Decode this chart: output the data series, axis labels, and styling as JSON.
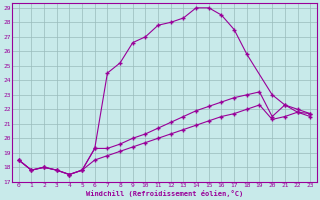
{
  "xlabel": "Windchill (Refroidissement éolien,°C)",
  "bg_color": "#c8eaea",
  "line_color": "#990099",
  "grid_color": "#99bbbb",
  "xlim": [
    -0.5,
    23.5
  ],
  "ylim": [
    17,
    29.3
  ],
  "xticks": [
    0,
    1,
    2,
    3,
    4,
    5,
    6,
    7,
    8,
    9,
    10,
    11,
    12,
    13,
    14,
    15,
    16,
    17,
    18,
    19,
    20,
    21,
    22,
    23
  ],
  "yticks": [
    17,
    18,
    19,
    20,
    21,
    22,
    23,
    24,
    25,
    26,
    27,
    28,
    29
  ],
  "line1_x": [
    0,
    1,
    2,
    3,
    4,
    5,
    6,
    7,
    8,
    9,
    10,
    11,
    12,
    13,
    14,
    15,
    16,
    17,
    18,
    20,
    21,
    22,
    23
  ],
  "line1_y": [
    18.5,
    17.8,
    18.0,
    17.8,
    17.5,
    17.8,
    19.3,
    24.5,
    25.2,
    26.6,
    27.0,
    27.8,
    28.0,
    28.3,
    29.0,
    29.0,
    28.5,
    27.5,
    25.8,
    23.0,
    22.3,
    21.8,
    21.7
  ],
  "line2_x": [
    0,
    1,
    2,
    3,
    4,
    5,
    6,
    7,
    8,
    9,
    10,
    11,
    12,
    13,
    14,
    15,
    16,
    17,
    18,
    19,
    20,
    21,
    22,
    23
  ],
  "line2_y": [
    18.5,
    17.8,
    18.0,
    17.8,
    17.5,
    17.8,
    19.3,
    19.3,
    19.6,
    20.0,
    20.3,
    20.7,
    21.1,
    21.5,
    21.9,
    22.2,
    22.5,
    22.8,
    23.0,
    23.2,
    21.5,
    22.3,
    22.0,
    21.7
  ],
  "line3_x": [
    0,
    1,
    2,
    3,
    4,
    5,
    6,
    7,
    8,
    9,
    10,
    11,
    12,
    13,
    14,
    15,
    16,
    17,
    18,
    19,
    20,
    21,
    22,
    23
  ],
  "line3_y": [
    18.5,
    17.8,
    18.0,
    17.8,
    17.5,
    17.8,
    18.5,
    18.8,
    19.1,
    19.4,
    19.7,
    20.0,
    20.3,
    20.6,
    20.9,
    21.2,
    21.5,
    21.7,
    22.0,
    22.3,
    21.3,
    21.5,
    21.8,
    21.5
  ]
}
